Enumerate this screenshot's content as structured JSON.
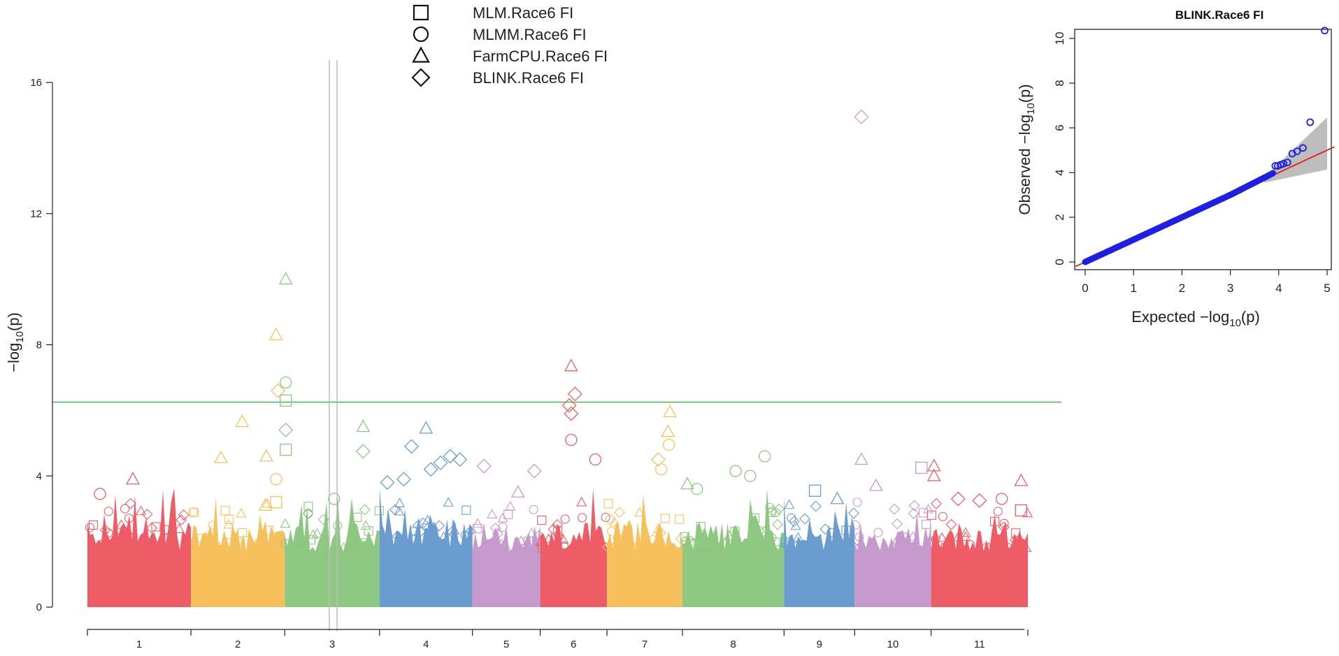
{
  "manhattan": {
    "type": "scatter",
    "ylabel_prefix": "−log",
    "ylabel_sub": "10",
    "ylabel_suffix": "(p)",
    "ylim": [
      0,
      16
    ],
    "yticks": [
      "0",
      "4",
      "8",
      "12",
      "16"
    ],
    "threshold": 6.25,
    "threshold_color": "#7bbf7b",
    "highlight_lines": [
      2.5,
      2.58
    ],
    "legend": [
      {
        "shape": "square",
        "label": "MLM.Race6  FI"
      },
      {
        "shape": "circle",
        "label": "MLMM.Race6  FI"
      },
      {
        "shape": "triangle",
        "label": "FarmCPU.Race6  FI"
      },
      {
        "shape": "diamond",
        "label": "BLINK.Race6  FI"
      }
    ],
    "chromosomes": [
      {
        "name": "1",
        "color": "#ee5c67",
        "start": 0.0,
        "end": 1.07
      },
      {
        "name": "2",
        "color": "#f6c15d",
        "start": 1.07,
        "end": 2.04
      },
      {
        "name": "3",
        "color": "#8ec781",
        "start": 2.04,
        "end": 3.02
      },
      {
        "name": "4",
        "color": "#6a9ccf",
        "start": 3.02,
        "end": 3.98
      },
      {
        "name": "5",
        "color": "#c69acc",
        "start": 3.98,
        "end": 4.68
      },
      {
        "name": "6",
        "color": "#ee5c67",
        "start": 4.68,
        "end": 5.37
      },
      {
        "name": "7",
        "color": "#f6c15d",
        "start": 5.37,
        "end": 6.15
      },
      {
        "name": "8",
        "color": "#8ec781",
        "start": 6.15,
        "end": 7.2
      },
      {
        "name": "9",
        "color": "#6a9ccf",
        "start": 7.2,
        "end": 7.93
      },
      {
        "name": "10",
        "color": "#c69acc",
        "start": 7.93,
        "end": 8.72
      },
      {
        "name": "11",
        "color": "#ee5c67",
        "start": 8.72,
        "end": 9.72
      }
    ],
    "peaks": [
      {
        "chr": "1",
        "shape": "triangle",
        "x": 0.47,
        "y": 3.9
      },
      {
        "chr": "1",
        "shape": "circle",
        "x": 0.13,
        "y": 3.45
      },
      {
        "chr": "2",
        "shape": "triangle",
        "x": 1.6,
        "y": 5.65
      },
      {
        "chr": "2",
        "shape": "triangle",
        "x": 1.38,
        "y": 4.55
      },
      {
        "chr": "2",
        "shape": "triangle",
        "x": 1.85,
        "y": 4.6
      },
      {
        "chr": "2",
        "shape": "triangle",
        "x": 1.84,
        "y": 3.1
      },
      {
        "chr": "2",
        "shape": "triangle",
        "x": 1.95,
        "y": 8.3
      },
      {
        "chr": "2",
        "shape": "diamond",
        "x": 1.97,
        "y": 6.6
      },
      {
        "chr": "2",
        "shape": "circle",
        "x": 1.95,
        "y": 3.9
      },
      {
        "chr": "2",
        "shape": "square",
        "x": 1.95,
        "y": 3.2
      },
      {
        "chr": "3",
        "shape": "triangle",
        "x": 2.05,
        "y": 10.0
      },
      {
        "chr": "3",
        "shape": "circle",
        "x": 2.05,
        "y": 6.85
      },
      {
        "chr": "3",
        "shape": "square",
        "x": 2.05,
        "y": 6.3
      },
      {
        "chr": "3",
        "shape": "diamond",
        "x": 2.05,
        "y": 5.4
      },
      {
        "chr": "3",
        "shape": "square",
        "x": 2.05,
        "y": 4.8
      },
      {
        "chr": "3",
        "shape": "triangle",
        "x": 2.85,
        "y": 5.5
      },
      {
        "chr": "3",
        "shape": "diamond",
        "x": 2.85,
        "y": 4.75
      },
      {
        "chr": "3",
        "shape": "circle",
        "x": 2.55,
        "y": 3.3
      },
      {
        "chr": "4",
        "shape": "diamond",
        "x": 3.35,
        "y": 4.9
      },
      {
        "chr": "4",
        "shape": "triangle",
        "x": 3.5,
        "y": 5.45
      },
      {
        "chr": "4",
        "shape": "diamond",
        "x": 3.1,
        "y": 3.8
      },
      {
        "chr": "4",
        "shape": "diamond",
        "x": 3.27,
        "y": 3.9
      },
      {
        "chr": "4",
        "shape": "diamond",
        "x": 3.55,
        "y": 4.2
      },
      {
        "chr": "4",
        "shape": "diamond",
        "x": 3.75,
        "y": 4.6
      },
      {
        "chr": "4",
        "shape": "diamond",
        "x": 3.65,
        "y": 4.4
      },
      {
        "chr": "4",
        "shape": "diamond",
        "x": 3.85,
        "y": 4.5
      },
      {
        "chr": "5",
        "shape": "diamond",
        "x": 4.1,
        "y": 4.3
      },
      {
        "chr": "5",
        "shape": "diamond",
        "x": 4.62,
        "y": 4.15
      },
      {
        "chr": "5",
        "shape": "triangle",
        "x": 4.45,
        "y": 3.5
      },
      {
        "chr": "6",
        "shape": "triangle",
        "x": 5.0,
        "y": 7.35
      },
      {
        "chr": "6",
        "shape": "diamond",
        "x": 5.04,
        "y": 6.5
      },
      {
        "chr": "6",
        "shape": "diamond",
        "x": 4.98,
        "y": 6.15
      },
      {
        "chr": "6",
        "shape": "diamond",
        "x": 5.0,
        "y": 5.9
      },
      {
        "chr": "6",
        "shape": "circle",
        "x": 5.25,
        "y": 4.5
      },
      {
        "chr": "6",
        "shape": "circle",
        "x": 5.0,
        "y": 5.1
      },
      {
        "chr": "7",
        "shape": "triangle",
        "x": 6.02,
        "y": 5.95
      },
      {
        "chr": "7",
        "shape": "triangle",
        "x": 6.0,
        "y": 5.35
      },
      {
        "chr": "7",
        "shape": "circle",
        "x": 6.01,
        "y": 4.95
      },
      {
        "chr": "7",
        "shape": "diamond",
        "x": 5.9,
        "y": 4.5
      },
      {
        "chr": "7",
        "shape": "circle",
        "x": 5.93,
        "y": 4.2
      },
      {
        "chr": "8",
        "shape": "circle",
        "x": 7.0,
        "y": 4.6
      },
      {
        "chr": "8",
        "shape": "circle",
        "x": 6.7,
        "y": 4.15
      },
      {
        "chr": "8",
        "shape": "circle",
        "x": 6.3,
        "y": 3.6
      },
      {
        "chr": "8",
        "shape": "triangle",
        "x": 6.2,
        "y": 3.75
      },
      {
        "chr": "8",
        "shape": "circle",
        "x": 6.85,
        "y": 4.0
      },
      {
        "chr": "9",
        "shape": "square",
        "x": 7.52,
        "y": 3.55
      },
      {
        "chr": "9",
        "shape": "triangle",
        "x": 7.75,
        "y": 3.3
      },
      {
        "chr": "10",
        "shape": "diamond",
        "x": 8.0,
        "y": 14.95
      },
      {
        "chr": "10",
        "shape": "triangle",
        "x": 8.0,
        "y": 4.5
      },
      {
        "chr": "10",
        "shape": "triangle",
        "x": 8.15,
        "y": 3.7
      },
      {
        "chr": "10",
        "shape": "square",
        "x": 8.62,
        "y": 4.25
      },
      {
        "chr": "11",
        "shape": "triangle",
        "x": 8.75,
        "y": 4.3
      },
      {
        "chr": "11",
        "shape": "triangle",
        "x": 8.75,
        "y": 4.0
      },
      {
        "chr": "11",
        "shape": "diamond",
        "x": 9.0,
        "y": 3.3
      },
      {
        "chr": "11",
        "shape": "diamond",
        "x": 9.22,
        "y": 3.25
      },
      {
        "chr": "11",
        "shape": "triangle",
        "x": 9.65,
        "y": 3.85
      },
      {
        "chr": "11",
        "shape": "circle",
        "x": 9.45,
        "y": 3.3
      },
      {
        "chr": "11",
        "shape": "square",
        "x": 9.65,
        "y": 2.95
      }
    ]
  },
  "qq": {
    "type": "scatter",
    "title": "BLINK.Race6  FI",
    "xlabel_prefix": "Expected  −log",
    "xlabel_sub": "10",
    "xlabel_suffix": "(p)",
    "ylabel_prefix": "Observed  −log",
    "ylabel_sub": "10",
    "ylabel_suffix": "(p)",
    "xlim": [
      0,
      5
    ],
    "ylim": [
      0,
      10.5
    ],
    "xticks": [
      "0",
      "1",
      "2",
      "3",
      "4",
      "5"
    ],
    "yticks": [
      "0",
      "2",
      "4",
      "6",
      "8",
      "10"
    ],
    "point_color": "#1f1fe0",
    "line_color": "#e02020",
    "band_color": "#bdbdbd",
    "outliers": [
      {
        "x": 4.95,
        "y": 10.35
      },
      {
        "x": 4.65,
        "y": 6.25
      },
      {
        "x": 4.5,
        "y": 5.1
      },
      {
        "x": 4.38,
        "y": 4.95
      },
      {
        "x": 4.28,
        "y": 4.85
      },
      {
        "x": 4.18,
        "y": 4.45
      },
      {
        "x": 4.1,
        "y": 4.4
      },
      {
        "x": 4.04,
        "y": 4.35
      },
      {
        "x": 3.98,
        "y": 4.3
      },
      {
        "x": 3.93,
        "y": 4.3
      }
    ]
  }
}
